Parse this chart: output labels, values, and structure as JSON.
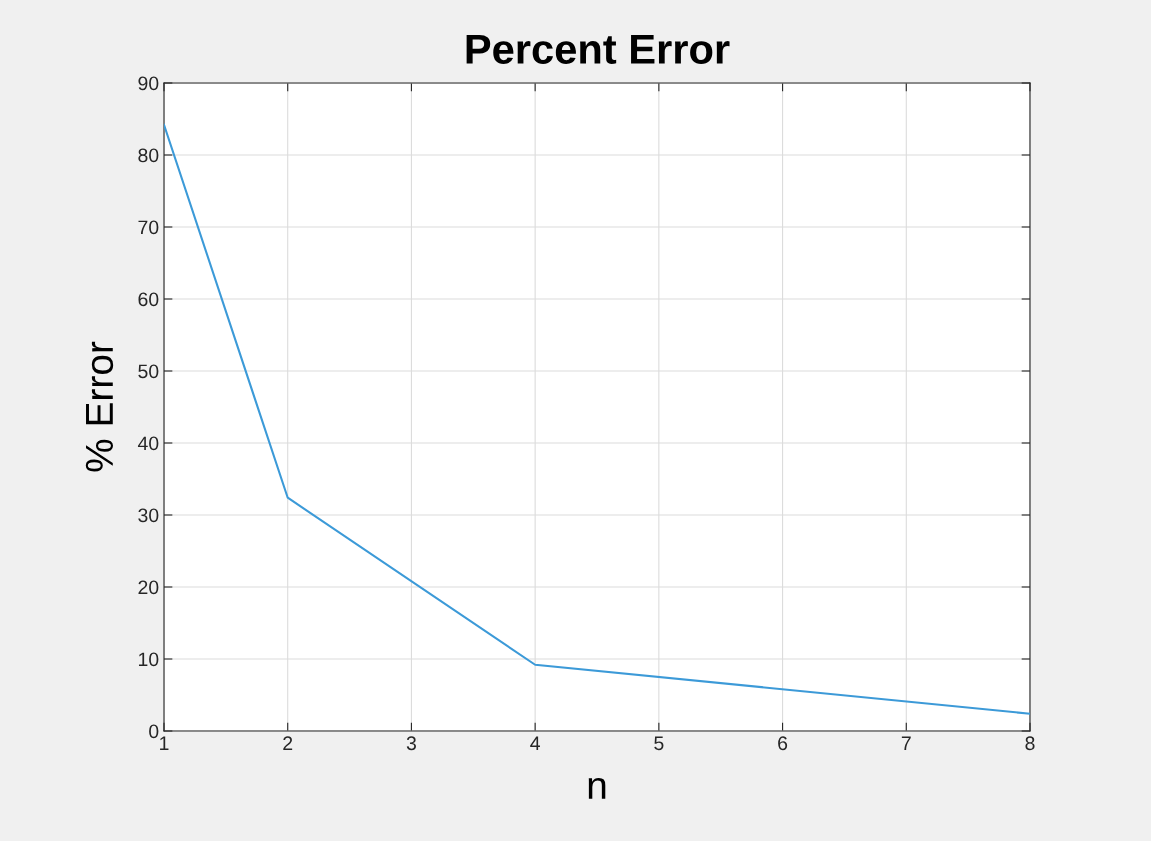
{
  "chart_data": {
    "type": "line",
    "title": "Percent Error",
    "xlabel": "n",
    "ylabel": "% Error",
    "x": [
      1,
      2,
      4,
      8
    ],
    "series": [
      {
        "color": "#3c9ad8",
        "values": [
          84.2,
          32.4,
          9.2,
          2.4
        ]
      }
    ],
    "xlim": [
      1,
      8
    ],
    "xticks": [
      1,
      2,
      3,
      4,
      5,
      6,
      7,
      8
    ],
    "ylim": [
      0,
      90
    ],
    "yticks": [
      0,
      10,
      20,
      30,
      40,
      50,
      60,
      70,
      80,
      90
    ],
    "grid": true,
    "marker": "none",
    "line_style": "solid"
  }
}
